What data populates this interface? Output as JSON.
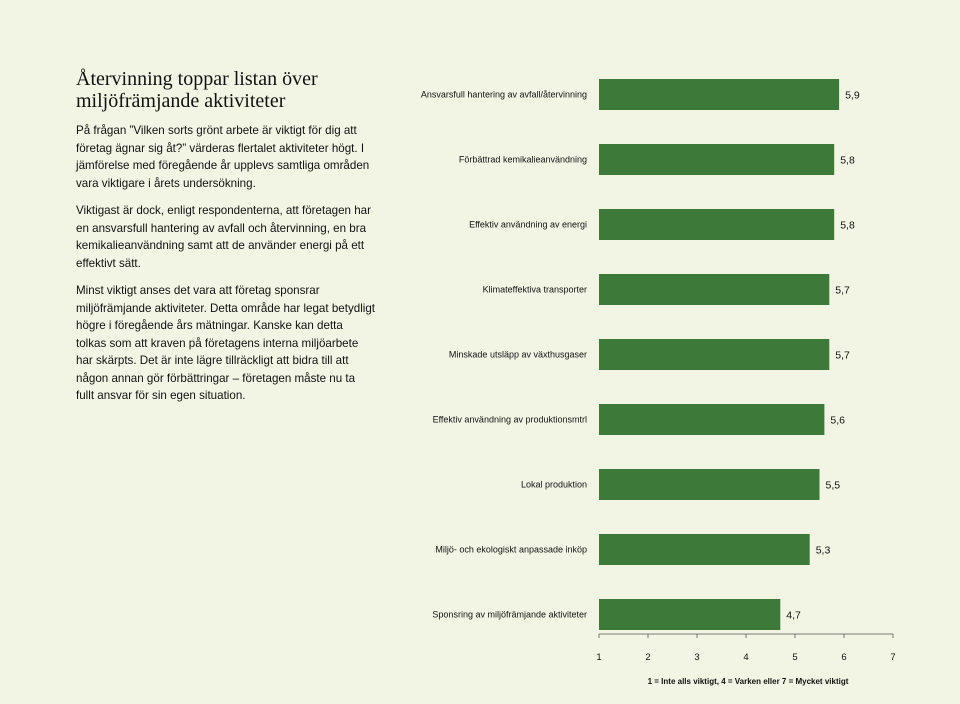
{
  "text": {
    "title": "Återvinning toppar listan över miljöfrämjande aktiviteter",
    "paragraphs": [
      "På frågan ”Vilken sorts grönt arbete är viktigt för dig att företag ägnar sig åt?” värderas flertalet aktiviteter högt. I jämförelse med föregående år upplevs samtliga områden vara viktigare i årets undersökning.",
      "Viktigast är dock, enligt respondenterna, att företagen har en ansvarsfull hantering av avfall och återvinning, en bra kemikalieanvändning samt att de använder energi på ett effektivt sätt.",
      "Minst viktigt anses det vara att företag sponsrar miljöfrämjande aktiviteter. Detta område har legat betydligt högre i föregående års mätningar. Kanske kan detta tolkas som att kraven på företagens interna miljöarbete har skärpts. Det är inte lägre tillräckligt att bidra till att någon annan gör förbättringar – företagen måste nu ta fullt ansvar för sin egen situation."
    ]
  },
  "colors": {
    "bar": "#3d7a3a",
    "background": "#f2f5e4"
  },
  "chart_data": {
    "type": "bar",
    "orientation": "horizontal",
    "categories": [
      "Ansvarsfull hantering av avfall/återvinning",
      "Förbättrad kemikalieanvändning",
      "Effektiv användning av energi",
      "Klimateffektiva transporter",
      "Minskade utsläpp av växthusgaser",
      "Effektiv användning av produktionsmtrl",
      "Lokal produktion",
      "Miljö- och ekologiskt anpassade inköp",
      "Sponsring av miljöfrämjande aktiviteter"
    ],
    "values": [
      5.9,
      5.8,
      5.8,
      5.7,
      5.7,
      5.6,
      5.5,
      5.3,
      4.7
    ],
    "value_labels": [
      "5,9",
      "5,8",
      "5,8",
      "5,7",
      "5,7",
      "5,6",
      "5,5",
      "5,3",
      "4,7"
    ],
    "xlim": [
      1,
      7
    ],
    "xticks": [
      "1",
      "2",
      "3",
      "4",
      "5",
      "6",
      "7"
    ],
    "legend_note": "1 = Inte alls viktigt, 4 = Varken eller 7 = Mycket viktigt",
    "grid": false
  }
}
